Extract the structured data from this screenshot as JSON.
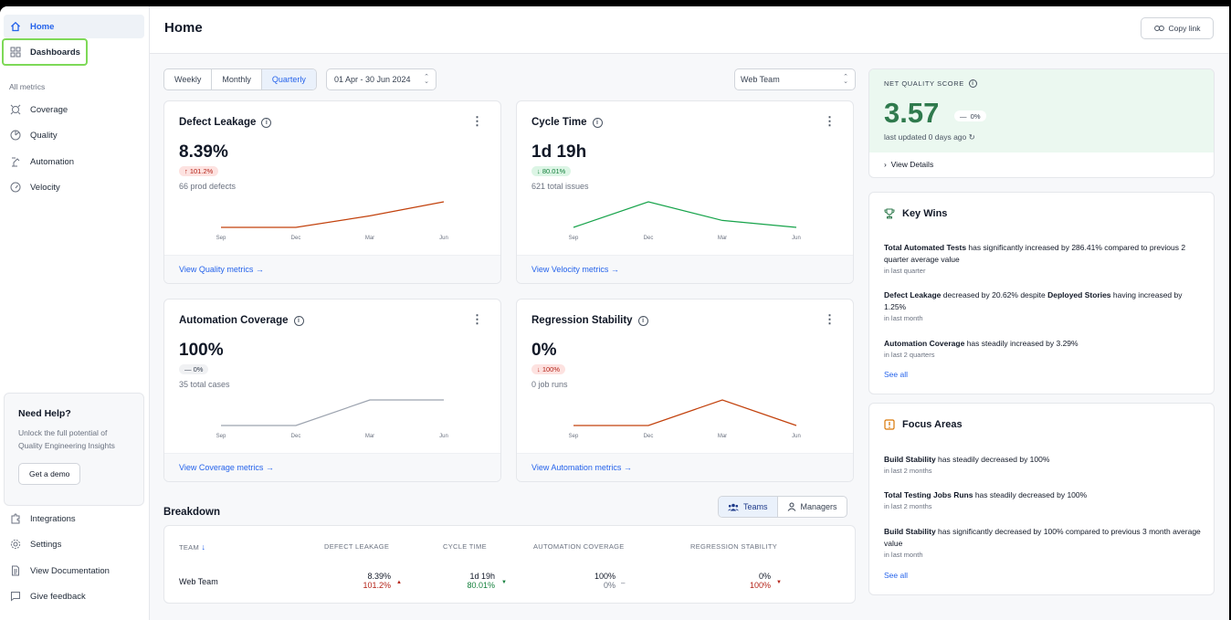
{
  "sidebar": {
    "items": [
      {
        "label": "Home",
        "icon": "home-icon"
      },
      {
        "label": "Dashboards",
        "icon": "grid-icon"
      }
    ],
    "section_label": "All metrics",
    "metrics": [
      {
        "label": "Coverage",
        "icon": "coverage-icon"
      },
      {
        "label": "Quality",
        "icon": "pie-icon"
      },
      {
        "label": "Automation",
        "icon": "robot-arm-icon"
      },
      {
        "label": "Velocity",
        "icon": "gauge-icon"
      }
    ],
    "help": {
      "title": "Need Help?",
      "text": "Unlock the full potential of Quality Engineering Insights",
      "button": "Get a demo"
    },
    "bottom": [
      {
        "label": "Integrations",
        "icon": "puzzle-icon"
      },
      {
        "label": "Settings",
        "icon": "gear-icon"
      },
      {
        "label": "View Documentation",
        "icon": "document-icon"
      },
      {
        "label": "Give feedback",
        "icon": "feedback-icon"
      }
    ]
  },
  "header": {
    "title": "Home",
    "copy_link": "Copy link"
  },
  "filters": {
    "periods": [
      "Weekly",
      "Monthly",
      "Quarterly"
    ],
    "selected_period": "Quarterly",
    "date_range": "01 Apr - 30 Jun 2024",
    "team": "Web Team"
  },
  "cards": [
    {
      "title": "Defect Leakage",
      "value": "8.39%",
      "badge": "101.2%",
      "badge_arrow": "↑",
      "sub": "66 prod defects",
      "link": "View Quality metrics →"
    },
    {
      "title": "Cycle Time",
      "value": "1d 19h",
      "badge": "80.01%",
      "badge_arrow": "↓",
      "sub": "621 total issues",
      "link": "View Velocity metrics →"
    },
    {
      "title": "Automation Coverage",
      "value": "100%",
      "badge": "0%",
      "badge_arrow": "—",
      "sub": "35 total cases",
      "link": "View Coverage metrics →"
    },
    {
      "title": "Regression Stability",
      "value": "0%",
      "badge": "100%",
      "badge_arrow": "↓",
      "sub": "0 job runs",
      "link": "View Automation metrics →"
    }
  ],
  "spark_months": [
    "Sep",
    "Dec",
    "Mar",
    "Jun"
  ],
  "sparklines": [
    {
      "color": "#c2410c",
      "values": [
        0,
        0,
        0.45,
        1
      ]
    },
    {
      "color": "#16a34a",
      "values": [
        0,
        1,
        0.27,
        0
      ]
    },
    {
      "color": "#9ca3af",
      "values": [
        0,
        0,
        1,
        1
      ]
    },
    {
      "color": "#c2410c",
      "values": [
        0,
        0,
        1,
        0
      ]
    }
  ],
  "breakdown": {
    "title": "Breakdown",
    "toggle": [
      "Teams",
      "Managers"
    ],
    "columns": [
      "TEAM",
      "DEFECT LEAKAGE",
      "CYCLE TIME",
      "AUTOMATION COVERAGE",
      "REGRESSION STABILITY"
    ],
    "rows": [
      {
        "team": "Web Team",
        "defect_leakage": "8.39%",
        "defect_change": "101.2%",
        "cycle_time": "1d 19h",
        "cycle_change": "80.01%",
        "coverage": "100%",
        "coverage_change": "0%",
        "stability": "0%",
        "stability_change": "100%"
      }
    ]
  },
  "net_quality": {
    "label": "NET QUALITY SCORE",
    "value": "3.57",
    "change": "0%",
    "updated": "last updated 0 days ago",
    "details": "View Details"
  },
  "key_wins": {
    "title": "Key Wins",
    "items": [
      {
        "bold1": "Total Automated Tests",
        "text1": " has significantly increased by 286.41% compared to previous 2 quarter average value",
        "bold2": "",
        "text2": "",
        "when": "in last quarter"
      },
      {
        "bold1": "Defect Leakage",
        "text1": " decreased by 20.62% despite ",
        "bold2": "Deployed Stories",
        "text2": " having increased by 1.25%",
        "when": "in last month"
      },
      {
        "bold1": "Automation Coverage",
        "text1": " has steadily increased by 3.29%",
        "bold2": "",
        "text2": "",
        "when": "in last 2 quarters"
      }
    ],
    "see_all": "See all"
  },
  "focus_areas": {
    "title": "Focus Areas",
    "items": [
      {
        "bold1": "Build Stability",
        "text1": " has steadily decreased by 100%",
        "when": "in last 2 months"
      },
      {
        "bold1": "Total Testing Jobs Runs",
        "text1": " has steadily decreased by 100%",
        "when": "in last 2 months"
      },
      {
        "bold1": "Build Stability",
        "text1": " has significantly decreased by 100% compared to previous 3 month average value",
        "when": "in last month"
      }
    ],
    "see_all": "See all"
  }
}
